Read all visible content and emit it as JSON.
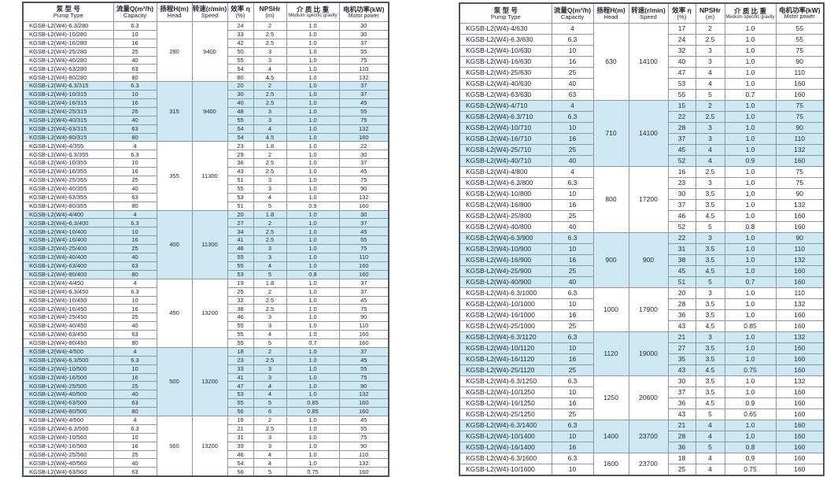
{
  "columns": [
    {
      "key": "pump-type",
      "zh": "泵 型 号",
      "en": "Pump Type"
    },
    {
      "key": "capacity",
      "zh": "流量Q(m³/h)",
      "en": "Capacity"
    },
    {
      "key": "head",
      "zh": "扬程H(m)",
      "en": "Head"
    },
    {
      "key": "speed",
      "zh": "转速(r/min)",
      "en": "Speed"
    },
    {
      "key": "efficiency",
      "zh": "效率 η",
      "en": "(%)"
    },
    {
      "key": "npshr",
      "zh": "NPSHr",
      "en": "(m)"
    },
    {
      "key": "medium-specific-gravity",
      "zh": "介 质 比 重",
      "en": "Medium specific gravity"
    },
    {
      "key": "motor-power",
      "zh": "电机功率(kW)",
      "en": "Motor power"
    }
  ],
  "colors": {
    "row_shade": "#cfe9f4",
    "border": "#8f979e",
    "outer_border": "#4d565e",
    "text": "#1f2328"
  },
  "tables": [
    {
      "groups": [
        {
          "head": "280",
          "speed": "9400",
          "shaded": false,
          "rows": [
            [
              "KGSB-L2(W4)-6.3/280",
              "6.3",
              "24",
              "2",
              "1.0",
              "30"
            ],
            [
              "KGSB-L2(W4)-10/280",
              "10",
              "33",
              "2.5",
              "1.0",
              "30"
            ],
            [
              "KGSB-L2(W4)-16/280",
              "16",
              "42",
              "2.5",
              "1.0",
              "37"
            ],
            [
              "KGSB-L2(W4)-25/280",
              "25",
              "50",
              "3",
              "1.0",
              "55"
            ],
            [
              "KGSB-L2(W4)-40/280",
              "40",
              "55",
              "3",
              "1.0",
              "75"
            ],
            [
              "KGSB-L2(W4)-63/280",
              "63",
              "54",
              "4",
              "1.0",
              "110"
            ],
            [
              "KGSB-L2(W4)-80/280",
              "80",
              "80",
              "4.5",
              "1.0",
              "132"
            ]
          ]
        },
        {
          "head": "315",
          "speed": "9400",
          "shaded": true,
          "rows": [
            [
              "KGSB-L2(W4)-6.3/315",
              "6.3",
              "20",
              "2",
              "1.0",
              "37"
            ],
            [
              "KGSB-L2(W4)-10/315",
              "10",
              "30",
              "2.5",
              "1.0",
              "37"
            ],
            [
              "KGSB-L2(W4)-16/315",
              "16",
              "40",
              "2.5",
              "1.0",
              "45"
            ],
            [
              "KGSB-L2(W4)-25/315",
              "25",
              "48",
              "3",
              "1.0",
              "55"
            ],
            [
              "KGSB-L2(W4)-40/315",
              "40",
              "55",
              "3",
              "1.0",
              "75"
            ],
            [
              "KGSB-L2(W4)-63/315",
              "63",
              "54",
              "4",
              "1.0",
              "132"
            ],
            [
              "KGSB-L2(W4)-80/315",
              "80",
              "54",
              "4.5",
              "1.0",
              "160"
            ]
          ]
        },
        {
          "head": "355",
          "speed": "11300",
          "shaded": false,
          "rows": [
            [
              "KGSB-L2(W4)-4/355",
              "4",
              "23",
              "1.8",
              "1.0",
              "22"
            ],
            [
              "KGSB-L2(W4)-6.3/355",
              "6.3",
              "29",
              "2",
              "1.0",
              "30"
            ],
            [
              "KGSB-L2(W4)-10/355",
              "10",
              "36",
              "2.5",
              "1.0",
              "37"
            ],
            [
              "KGSB-L2(W4)-16/355",
              "16",
              "43",
              "2.5",
              "1.0",
              "45"
            ],
            [
              "KGSB-L2(W4)-25/355",
              "25",
              "51",
              "3",
              "1.0",
              "75"
            ],
            [
              "KGSB-L2(W4)-40/355",
              "40",
              "55",
              "3",
              "1.0",
              "90"
            ],
            [
              "KGSB-L2(W4)-63/355",
              "63",
              "53",
              "4",
              "1.0",
              "132"
            ],
            [
              "KGSB-L2(W4)-80/355",
              "80",
              "51",
              "5",
              "0.9",
              "160"
            ]
          ]
        },
        {
          "head": "400",
          "speed": "11300",
          "shaded": true,
          "rows": [
            [
              "KGSB-L2(W4)-4/400",
              "4",
              "20",
              "1.8",
              "1.0",
              "30"
            ],
            [
              "KGSB-L2(W4)-6.3/400",
              "6.3",
              "27",
              "2",
              "1.0",
              "37"
            ],
            [
              "KGSB-L2(W4)-10/400",
              "10",
              "34",
              "2.5",
              "1.0",
              "45"
            ],
            [
              "KGSB-L2(W4)-16/400",
              "16",
              "41",
              "2.5",
              "1.0",
              "55"
            ],
            [
              "KGSB-L2(W4)-25/400",
              "25",
              "48",
              "3",
              "1.0",
              "75"
            ],
            [
              "KGSB-L2(W4)-40/400",
              "40",
              "55",
              "3",
              "1.0",
              "110"
            ],
            [
              "KGSB-L2(W4)-63/400",
              "63",
              "55",
              "4",
              "1.0",
              "160"
            ],
            [
              "KGSB-L2(W4)-80/400",
              "80",
              "53",
              "5",
              "0.8",
              "160"
            ]
          ]
        },
        {
          "head": "450",
          "speed": "13200",
          "shaded": false,
          "rows": [
            [
              "KGSB-L2(W4)-4/450",
              "4",
              "19",
              "1.8",
              "1.0",
              "37"
            ],
            [
              "KGSB-L2(W4)-6.3/450",
              "6.3",
              "25",
              "2",
              "1.0",
              "37"
            ],
            [
              "KGSB-L2(W4)-10/450",
              "10",
              "32",
              "2.5",
              "1.0",
              "45"
            ],
            [
              "KGSB-L2(W4)-16/450",
              "16",
              "38",
              "2.5",
              "1.0",
              "75"
            ],
            [
              "KGSB-L2(W4)-25/450",
              "25",
              "46",
              "3",
              "1.0",
              "90"
            ],
            [
              "KGSB-L2(W4)-40/450",
              "40",
              "55",
              "3",
              "1.0",
              "110"
            ],
            [
              "KGSB-L2(W4)-63/450",
              "63",
              "55",
              "4",
              "1.0",
              "160"
            ],
            [
              "KGSB-L2(W4)-80/450",
              "80",
              "55",
              "5",
              "0.7",
              "160"
            ]
          ]
        },
        {
          "head": "500",
          "speed": "13200",
          "shaded": true,
          "rows": [
            [
              "KGSB-L2(W4)-4/500",
              "4",
              "18",
              "2",
              "1.0",
              "37"
            ],
            [
              "KGSB-L2(W4)-6.3/500",
              "6.3",
              "23",
              "2.5",
              "1.0",
              "45"
            ],
            [
              "KGSB-L2(W4)-10/500",
              "10",
              "33",
              "3",
              "1.0",
              "55"
            ],
            [
              "KGSB-L2(W4)-16/500",
              "16",
              "41",
              "3",
              "1.0",
              "75"
            ],
            [
              "KGSB-L2(W4)-25/500",
              "25",
              "47",
              "4",
              "1.0",
              "90"
            ],
            [
              "KGSB-L2(W4)-40/500",
              "40",
              "53",
              "4",
              "1.0",
              "132"
            ],
            [
              "KGSB-L2(W4)-63/500",
              "63",
              "55",
              "5",
              "0.85",
              "160"
            ],
            [
              "KGSB-L2(W4)-80/500",
              "80",
              "56",
              "6",
              "0.85",
              "160"
            ]
          ]
        },
        {
          "head": "560",
          "speed": "13200",
          "shaded": false,
          "rows": [
            [
              "KGSB-L2(W4)-4/560",
              "4",
              "16",
              "2",
              "1.0",
              "45"
            ],
            [
              "KGSB-L2(W4)-6.3/560",
              "6.3",
              "21",
              "2.5",
              "1.0",
              "55"
            ],
            [
              "KGSB-L2(W4)-10/560",
              "10",
              "31",
              "3",
              "1.0",
              "75"
            ],
            [
              "KGSB-L2(W4)-16/560",
              "16",
              "39",
              "3",
              "1.0",
              "90"
            ],
            [
              "KGSB-L2(W4)-25/560",
              "25",
              "46",
              "4",
              "1.0",
              "110"
            ],
            [
              "KGSB-L2(W4)-40/560",
              "40",
              "54",
              "4",
              "1.0",
              "132"
            ],
            [
              "KGSB-L2(W4)-63/560",
              "63",
              "56",
              "5",
              "0.75",
              "160"
            ]
          ]
        }
      ]
    },
    {
      "groups": [
        {
          "head": "630",
          "speed": "14100",
          "shaded": false,
          "rows": [
            [
              "KGSB-L2(W4)-4/630",
              "4",
              "17",
              "2",
              "1.0",
              "55"
            ],
            [
              "KGSB-L2(W4)-6.3/630",
              "6.3",
              "24",
              "2.5",
              "1.0",
              "55"
            ],
            [
              "KGSB-L2(W4)-10/630",
              "10",
              "32",
              "3",
              "1.0",
              "75"
            ],
            [
              "KGSB-L2(W4)-16/630",
              "16",
              "40",
              "3",
              "1.0",
              "90"
            ],
            [
              "KGSB-L2(W4)-25/630",
              "25",
              "47",
              "4",
              "1.0",
              "110"
            ],
            [
              "KGSB-L2(W4)-40/630",
              "40",
              "53",
              "4",
              "1.0",
              "160"
            ],
            [
              "KGSB-L2(W4)-63/630",
              "63",
              "55",
              "5",
              "0.7",
              "160"
            ]
          ]
        },
        {
          "head": "710",
          "speed": "14100",
          "shaded": true,
          "rows": [
            [
              "KGSB-L2(W4)-4/710",
              "4",
              "15",
              "2",
              "1.0",
              "75"
            ],
            [
              "KGSB-L2(W4)-6.3/710",
              "6.3",
              "22",
              "2.5",
              "1.0",
              "75"
            ],
            [
              "KGSB-L2(W4)-10/710",
              "10",
              "28",
              "3",
              "1.0",
              "90"
            ],
            [
              "KGSB-L2(W4)-16/710",
              "16",
              "37",
              "3",
              "1.0",
              "110"
            ],
            [
              "KGSB-L2(W4)-25/710",
              "25",
              "45",
              "4",
              "1.0",
              "132"
            ],
            [
              "KGSB-L2(W4)-40/710",
              "40",
              "52",
              "4",
              "0.9",
              "160"
            ]
          ]
        },
        {
          "head": "800",
          "speed": "17200",
          "shaded": false,
          "rows": [
            [
              "KGSB-L2(W4)-4/800",
              "4",
              "16",
              "2.5",
              "1.0",
              "75"
            ],
            [
              "KGSB-L2(W4)-6.3/800",
              "6.3",
              "23",
              "3",
              "1.0",
              "75"
            ],
            [
              "KGSB-L2(W4)-10/800",
              "10",
              "30",
              "3.5",
              "1.0",
              "90"
            ],
            [
              "KGSB-L2(W4)-16/800",
              "16",
              "37",
              "3.5",
              "1.0",
              "132"
            ],
            [
              "KGSB-L2(W4)-25/800",
              "25",
              "46",
              "4.5",
              "1.0",
              "160"
            ],
            [
              "KGSB-L2(W4)-40/800",
              "40",
              "52",
              "5",
              "0.8",
              "160"
            ]
          ]
        },
        {
          "head": "900",
          "speed": "900",
          "shaded": true,
          "rows": [
            [
              "KGSB-L2(W4)-6.3/900",
              "6.3",
              "22",
              "3",
              "1.0",
              "90"
            ],
            [
              "KGSB-L2(W4)-10/900",
              "10",
              "31",
              "3.5",
              "1.0",
              "110"
            ],
            [
              "KGSB-L2(W4)-16/900",
              "16",
              "38",
              "3.5",
              "1.0",
              "132"
            ],
            [
              "KGSB-L2(W4)-25/900",
              "25",
              "45",
              "4.5",
              "1.0",
              "160"
            ],
            [
              "KGSB-L2(W4)-40/900",
              "40",
              "51",
              "5",
              "0.7",
              "160"
            ]
          ]
        },
        {
          "head": "1000",
          "speed": "17900",
          "shaded": false,
          "rows": [
            [
              "KGSB-L2(W4)-6.3/1000",
              "6.3",
              "20",
              "3",
              "1.0",
              "110"
            ],
            [
              "KGSB-L2(W4)-10/1000",
              "10",
              "28",
              "3.5",
              "1.0",
              "132"
            ],
            [
              "KGSB-L2(W4)-16/1000",
              "16",
              "36",
              "3.5",
              "1.0",
              "160"
            ],
            [
              "KGSB-L2(W4)-25/1000",
              "25",
              "43",
              "4.5",
              "0.85",
              "160"
            ]
          ]
        },
        {
          "head": "1120",
          "speed": "19000",
          "shaded": true,
          "rows": [
            [
              "KGSB-L2(W4)-6.3/1120",
              "6.3",
              "21",
              "3",
              "1.0",
              "132"
            ],
            [
              "KGSB-L2(W4)-10/1120",
              "10",
              "27",
              "3.5",
              "1.0",
              "160"
            ],
            [
              "KGSB-L2(W4)-16/1120",
              "16",
              "35",
              "3.5",
              "1.0",
              "160"
            ],
            [
              "KGSB-L2(W4)-25/1120",
              "25",
              "43",
              "4.5",
              "0.75",
              "160"
            ]
          ]
        },
        {
          "head": "1250",
          "speed": "20600",
          "shaded": false,
          "rows": [
            [
              "KGSB-L2(W4)-6.3/1250",
              "6.3",
              "30",
              "3.5",
              "1.0",
              "132"
            ],
            [
              "KGSB-L2(W4)-10/1250",
              "10",
              "37",
              "3.5",
              "1.0",
              "160"
            ],
            [
              "KGSB-L2(W4)-16/1250",
              "16",
              "36",
              "4.5",
              "0.9",
              "160"
            ],
            [
              "KGSB-L2(W4)-25/1250",
              "25",
              "43",
              "5",
              "0.65",
              "160"
            ]
          ]
        },
        {
          "head": "1400",
          "speed": "23700",
          "shaded": true,
          "rows": [
            [
              "KGSB-L2(W4)-6.3/1400",
              "6.3",
              "21",
              "4",
              "1.0",
              "160"
            ],
            [
              "KGSB-L2(W4)-10/1400",
              "10",
              "28",
              "4",
              "1.0",
              "160"
            ],
            [
              "KGSB-L2(W4)-16/1400",
              "16",
              "36",
              "5",
              "0.8",
              "160"
            ]
          ]
        },
        {
          "head": "1600",
          "speed": "23700",
          "shaded": false,
          "rows": [
            [
              "KGSB-L2(W4)-6.3/1600",
              "6.3",
              "18",
              "4",
              "0.9",
              "160"
            ],
            [
              "KGSB-L2(W4)-10/1600",
              "10",
              "25",
              "4",
              "0.75",
              "160"
            ]
          ]
        }
      ]
    }
  ]
}
